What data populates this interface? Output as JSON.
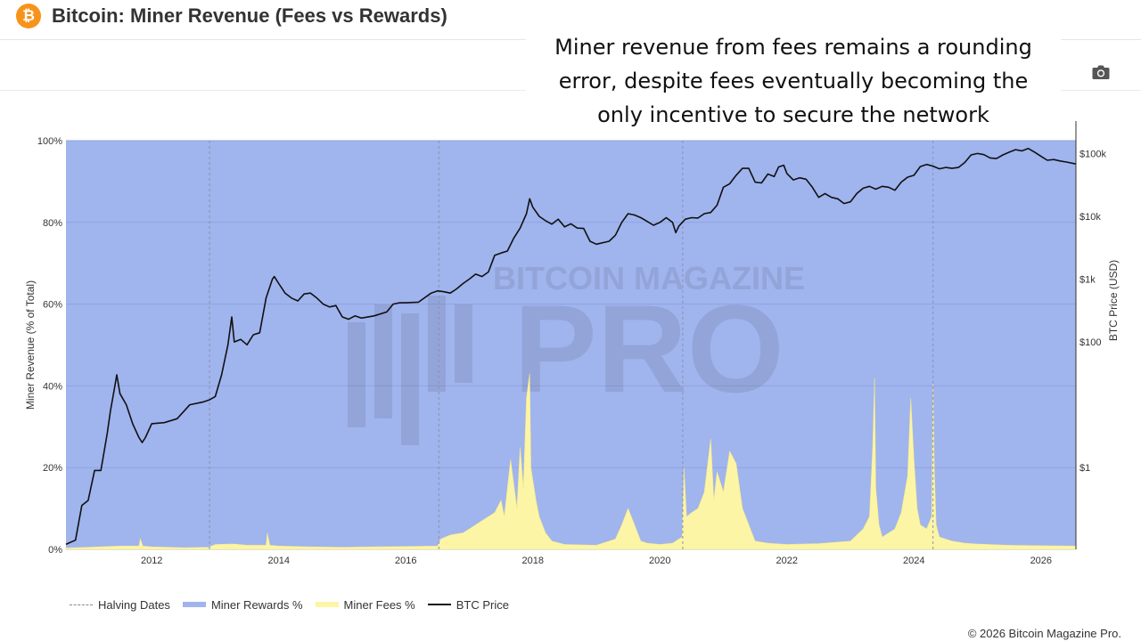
{
  "header": {
    "title": "Bitcoin: Miner Revenue (Fees vs Rewards)",
    "logo_glyph": "₿",
    "logo_color": "#f7931a"
  },
  "toolbar": {
    "camera_icon": "camera-icon"
  },
  "annotation": {
    "lines": [
      "Miner revenue from fees remains a rounding",
      "error, despite fees eventually becoming the",
      "only incentive to secure the network"
    ]
  },
  "watermark": {
    "top": "BITCOIN MAGAZINE",
    "main": "PRO"
  },
  "chart_data": {
    "type": "area",
    "ylabel": "Miner Revenue (% of Total)",
    "y2label": "BTC Price (USD)",
    "ylim": [
      0,
      100
    ],
    "y_ticks": [
      "0%",
      "20%",
      "40%",
      "60%",
      "80%",
      "100%"
    ],
    "y2_scale": "log",
    "y2lim": [
      0.05,
      160000
    ],
    "y2_ticks": [
      {
        "value": 1,
        "label": "$1"
      },
      {
        "value": 100,
        "label": "$100"
      },
      {
        "value": 1000,
        "label": "$1k"
      },
      {
        "value": 10000,
        "label": "$10k"
      },
      {
        "value": 100000,
        "label": "$100k"
      }
    ],
    "xlim": [
      2010.65,
      2026.55
    ],
    "x_ticks": [
      "2012",
      "2014",
      "2016",
      "2018",
      "2020",
      "2022",
      "2024",
      "2026"
    ],
    "halving_dates": [
      2012.91,
      2016.52,
      2020.36,
      2024.3
    ],
    "grid": true,
    "legend_position": "bottom-left",
    "legend": [
      "Halving Dates",
      "Miner Rewards %",
      "Miner Fees %",
      "BTC Price"
    ],
    "colors": {
      "rewards": "#a0b4ee",
      "fees": "#fdf5a6",
      "fees_edge": "#f2e78a",
      "price": "#111111",
      "halving": "#8a94ad"
    },
    "series": [
      {
        "name": "Miner Fees %",
        "x": [
          2010.65,
          2011.0,
          2011.5,
          2011.8,
          2011.82,
          2011.86,
          2012.0,
          2012.5,
          2012.9,
          2013.0,
          2013.3,
          2013.5,
          2013.8,
          2013.82,
          2013.86,
          2014.0,
          2014.5,
          2015.0,
          2015.5,
          2016.0,
          2016.5,
          2016.55,
          2016.7,
          2016.9,
          2017.0,
          2017.2,
          2017.4,
          2017.5,
          2017.55,
          2017.65,
          2017.75,
          2017.8,
          2017.85,
          2017.9,
          2017.95,
          2017.97,
          2018.0,
          2018.05,
          2018.1,
          2018.2,
          2018.3,
          2018.5,
          2019.0,
          2019.3,
          2019.4,
          2019.5,
          2019.6,
          2019.7,
          2019.8,
          2020.0,
          2020.2,
          2020.35,
          2020.38,
          2020.42,
          2020.5,
          2020.6,
          2020.7,
          2020.8,
          2020.85,
          2020.9,
          2021.0,
          2021.1,
          2021.2,
          2021.3,
          2021.35,
          2021.4,
          2021.5,
          2021.7,
          2022.0,
          2022.5,
          2023.0,
          2023.2,
          2023.3,
          2023.35,
          2023.38,
          2023.4,
          2023.45,
          2023.5,
          2023.7,
          2023.8,
          2023.9,
          2023.95,
          2024.0,
          2024.05,
          2024.1,
          2024.2,
          2024.28,
          2024.3,
          2024.32,
          2024.35,
          2024.4,
          2024.6,
          2024.8,
          2025.0,
          2025.5,
          2026.0,
          2026.55
        ],
        "values": [
          0.3,
          0.5,
          0.8,
          0.8,
          2.6,
          0.8,
          0.6,
          0.4,
          0.5,
          1.2,
          1.3,
          1.0,
          1.0,
          4.0,
          1.0,
          0.8,
          0.6,
          0.5,
          0.6,
          0.7,
          0.8,
          2.5,
          3.5,
          4.0,
          5.0,
          7.0,
          9.0,
          12.0,
          8.0,
          22.0,
          10.0,
          25.0,
          15.0,
          37.0,
          43.0,
          20.0,
          17.0,
          12.0,
          8.0,
          4.0,
          2.0,
          1.2,
          1.0,
          2.5,
          6.0,
          10.0,
          6.0,
          2.0,
          1.5,
          1.2,
          1.5,
          3.0,
          20.0,
          8.0,
          9.0,
          10.0,
          14.0,
          27.0,
          12.0,
          19.0,
          14.0,
          24.0,
          21.0,
          10.0,
          8.0,
          6.0,
          2.0,
          1.5,
          1.2,
          1.4,
          2.0,
          5.0,
          8.0,
          25.0,
          42.0,
          15.0,
          6.0,
          3.0,
          5.0,
          9.0,
          18.0,
          37.0,
          22.0,
          10.0,
          6.0,
          5.0,
          8.0,
          41.0,
          20.0,
          6.0,
          3.0,
          2.0,
          1.5,
          1.3,
          1.0,
          0.9,
          0.8
        ]
      },
      {
        "name": "BTC Price",
        "x": [
          2010.65,
          2010.8,
          2010.9,
          2011.0,
          2011.1,
          2011.2,
          2011.3,
          2011.35,
          2011.42,
          2011.45,
          2011.5,
          2011.6,
          2011.7,
          2011.8,
          2011.85,
          2011.9,
          2012.0,
          2012.2,
          2012.4,
          2012.6,
          2012.8,
          2012.91,
          2013.0,
          2013.1,
          2013.2,
          2013.26,
          2013.3,
          2013.4,
          2013.5,
          2013.6,
          2013.7,
          2013.8,
          2013.9,
          2013.93,
          2014.0,
          2014.1,
          2014.2,
          2014.3,
          2014.4,
          2014.5,
          2014.6,
          2014.7,
          2014.8,
          2014.9,
          2015.0,
          2015.1,
          2015.2,
          2015.3,
          2015.5,
          2015.7,
          2015.8,
          2015.9,
          2016.0,
          2016.2,
          2016.4,
          2016.5,
          2016.6,
          2016.7,
          2016.8,
          2016.9,
          2017.0,
          2017.1,
          2017.2,
          2017.3,
          2017.4,
          2017.5,
          2017.6,
          2017.7,
          2017.8,
          2017.9,
          2017.95,
          2018.0,
          2018.1,
          2018.2,
          2018.3,
          2018.4,
          2018.5,
          2018.6,
          2018.7,
          2018.8,
          2018.9,
          2019.0,
          2019.2,
          2019.3,
          2019.4,
          2019.5,
          2019.6,
          2019.7,
          2019.8,
          2019.9,
          2020.0,
          2020.1,
          2020.2,
          2020.25,
          2020.3,
          2020.4,
          2020.5,
          2020.6,
          2020.7,
          2020.8,
          2020.9,
          2021.0,
          2021.1,
          2021.2,
          2021.3,
          2021.4,
          2021.5,
          2021.6,
          2021.7,
          2021.8,
          2021.87,
          2021.95,
          2022.0,
          2022.1,
          2022.2,
          2022.3,
          2022.4,
          2022.5,
          2022.6,
          2022.7,
          2022.8,
          2022.9,
          2023.0,
          2023.1,
          2023.2,
          2023.3,
          2023.4,
          2023.5,
          2023.6,
          2023.7,
          2023.8,
          2023.9,
          2024.0,
          2024.1,
          2024.2,
          2024.3,
          2024.4,
          2024.5,
          2024.6,
          2024.7,
          2024.8,
          2024.9,
          2025.0,
          2025.1,
          2025.2,
          2025.3,
          2025.4,
          2025.5,
          2025.6,
          2025.7,
          2025.8,
          2025.9,
          2026.0,
          2026.1,
          2026.2,
          2026.3,
          2026.4,
          2026.55
        ],
        "values": [
          0.06,
          0.07,
          0.25,
          0.3,
          0.9,
          0.9,
          3.5,
          8,
          20,
          30,
          15,
          10,
          5,
          3,
          2.5,
          3,
          5,
          5.2,
          6,
          10,
          11,
          12,
          13.5,
          30,
          90,
          250,
          100,
          110,
          90,
          130,
          140,
          500,
          1000,
          1100,
          850,
          600,
          500,
          450,
          580,
          600,
          500,
          400,
          360,
          380,
          250,
          230,
          260,
          240,
          260,
          300,
          400,
          420,
          420,
          430,
          600,
          650,
          630,
          600,
          700,
          850,
          1000,
          1200,
          1100,
          1300,
          2400,
          2600,
          2800,
          4500,
          6500,
          11000,
          19000,
          14000,
          10000,
          8500,
          7500,
          9000,
          6800,
          7600,
          6500,
          6400,
          4000,
          3600,
          4000,
          5000,
          8000,
          11000,
          10500,
          9500,
          8300,
          7200,
          8000,
          9500,
          8000,
          5500,
          7000,
          9000,
          9500,
          9400,
          11000,
          11500,
          15000,
          29000,
          33000,
          45000,
          58000,
          58000,
          35000,
          34000,
          47000,
          43000,
          61000,
          65000,
          48000,
          38000,
          41000,
          39000,
          29000,
          20000,
          23000,
          20000,
          19000,
          16000,
          17000,
          23000,
          28000,
          30000,
          27000,
          30000,
          29000,
          26000,
          35000,
          42000,
          45000,
          62000,
          67000,
          63000,
          57000,
          60000,
          58000,
          60000,
          72000,
          95000,
          100000,
          96000,
          85000,
          83000,
          95000,
          105000,
          115000,
          110000,
          120000,
          105000,
          90000,
          78000,
          80000,
          76000,
          73000,
          68000
        ]
      }
    ]
  },
  "legend": {
    "halving": "Halving Dates",
    "rewards": "Miner Rewards %",
    "fees": "Miner Fees %",
    "price": "BTC Price"
  },
  "footer": {
    "copyright": "© 2026 Bitcoin Magazine Pro."
  }
}
